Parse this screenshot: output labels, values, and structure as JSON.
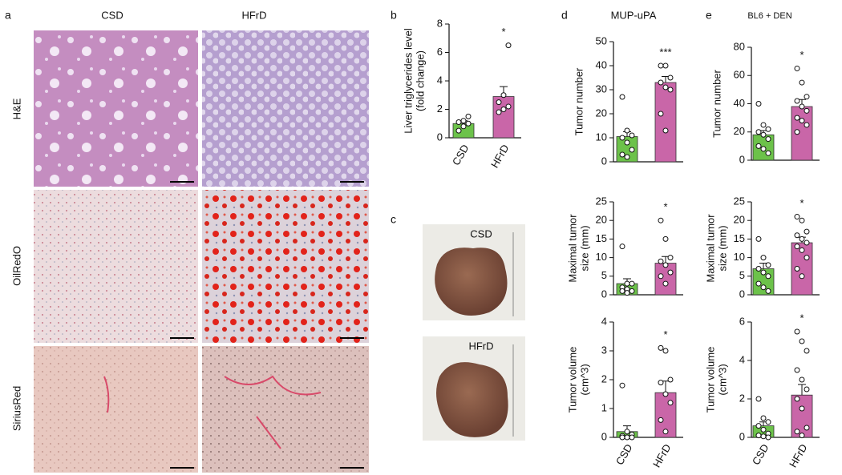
{
  "panels": {
    "a": {
      "label": "a",
      "columns": [
        "CSD",
        "HFrD"
      ],
      "rows": [
        "H&E",
        "OilRedO",
        "SiriusRed"
      ]
    },
    "b": {
      "label": "b"
    },
    "c": {
      "label": "c",
      "photos": [
        "CSD",
        "HFrD"
      ]
    },
    "d": {
      "label": "d",
      "title": "MUP-uPA"
    },
    "e": {
      "label": "e",
      "title": "BL6 + DEN"
    }
  },
  "chart_data": [
    {
      "type": "bar",
      "ylabel": [
        "Liver triglycerides level",
        "(fold change)"
      ],
      "categories": [
        "CSD",
        "HFrD"
      ],
      "values": [
        1.0,
        2.9
      ],
      "errors": [
        0.2,
        0.7
      ],
      "points": [
        [
          0.5,
          0.8,
          1.0,
          1.1,
          1.2,
          1.5
        ],
        [
          1.8,
          2.0,
          2.2,
          2.5,
          3.0,
          6.5
        ]
      ],
      "colors": [
        "#6cc24a",
        "#c966a8"
      ],
      "significance": "*",
      "ylim": [
        0,
        8
      ],
      "yticks": [
        0,
        2,
        4,
        6,
        8
      ]
    },
    {
      "type": "bar",
      "ylabel": [
        "Tumor number"
      ],
      "categories": [
        null,
        null
      ],
      "values": [
        10.5,
        33
      ],
      "errors": [
        2,
        2.5
      ],
      "points": [
        [
          27,
          13,
          11,
          10,
          8,
          5,
          3,
          2
        ],
        [
          40,
          40,
          35,
          33,
          31,
          30,
          20,
          13
        ]
      ],
      "colors": [
        "#6cc24a",
        "#c966a8"
      ],
      "significance": "***",
      "ylim": [
        0,
        50
      ],
      "yticks": [
        0,
        10,
        20,
        30,
        40,
        50
      ]
    },
    {
      "type": "bar",
      "ylabel": [
        "Maximal tumor",
        "size (mm)"
      ],
      "categories": [
        null,
        null
      ],
      "values": [
        3,
        8.5
      ],
      "errors": [
        1.3,
        1.8
      ],
      "points": [
        [
          13,
          3,
          3,
          2,
          1.5,
          1,
          1,
          0.5
        ],
        [
          20,
          15,
          10,
          9,
          8,
          6,
          5,
          3
        ]
      ],
      "colors": [
        "#6cc24a",
        "#c966a8"
      ],
      "significance": "*",
      "ylim": [
        0,
        25
      ],
      "yticks": [
        0,
        5,
        10,
        15,
        20,
        25
      ]
    },
    {
      "type": "bar",
      "ylabel": [
        "Tumor volume",
        "(cm^3)"
      ],
      "categories": [
        "CSD",
        "HFrD"
      ],
      "values": [
        0.2,
        1.55
      ],
      "errors": [
        0.2,
        0.4
      ],
      "points": [
        [
          1.8,
          0.2,
          0.1,
          0.05,
          0,
          0,
          0
        ],
        [
          3.1,
          3.0,
          2.0,
          1.9,
          1.5,
          1.2,
          0.6,
          0.2
        ]
      ],
      "colors": [
        "#6cc24a",
        "#c966a8"
      ],
      "significance": "*",
      "ylim": [
        0,
        4
      ],
      "yticks": [
        0,
        1,
        2,
        3,
        4
      ]
    },
    {
      "type": "bar",
      "ylabel": [
        "Tumor number"
      ],
      "categories": [
        null,
        null
      ],
      "values": [
        18,
        38
      ],
      "errors": [
        3,
        5
      ],
      "points": [
        [
          40,
          25,
          22,
          20,
          18,
          15,
          10,
          8,
          5
        ],
        [
          65,
          55,
          45,
          42,
          38,
          35,
          30,
          28,
          25,
          20
        ]
      ],
      "colors": [
        "#6cc24a",
        "#c966a8"
      ],
      "significance": "*",
      "ylim": [
        0,
        80
      ],
      "yticks": [
        0,
        20,
        40,
        60,
        80
      ]
    },
    {
      "type": "bar",
      "ylabel": [
        "Maximal tumor",
        "size (mm)"
      ],
      "categories": [
        null,
        null
      ],
      "values": [
        7,
        14
      ],
      "errors": [
        1.5,
        1.5
      ],
      "points": [
        [
          15,
          10,
          8,
          7,
          6,
          5,
          3,
          2,
          1
        ],
        [
          21,
          20,
          17,
          16,
          15,
          14,
          13,
          12,
          10,
          7,
          5
        ]
      ],
      "colors": [
        "#6cc24a",
        "#c966a8"
      ],
      "significance": "*",
      "ylim": [
        0,
        25
      ],
      "yticks": [
        0,
        5,
        10,
        15,
        20,
        25
      ]
    },
    {
      "type": "bar",
      "ylabel": [
        "Tumor volume",
        "(cm^3)"
      ],
      "categories": [
        "CSD",
        "HFrD"
      ],
      "values": [
        0.6,
        2.2
      ],
      "errors": [
        0.2,
        0.55
      ],
      "points": [
        [
          2.0,
          1.0,
          0.8,
          0.6,
          0.4,
          0.2,
          0.1,
          0.05,
          0
        ],
        [
          5.5,
          5.0,
          4.5,
          3.5,
          3.0,
          2.5,
          2.0,
          1.5,
          0.5,
          0.3,
          0.1
        ]
      ],
      "colors": [
        "#6cc24a",
        "#c966a8"
      ],
      "significance": "*",
      "ylim": [
        0,
        6
      ],
      "yticks": [
        0,
        2,
        4,
        6
      ]
    }
  ]
}
